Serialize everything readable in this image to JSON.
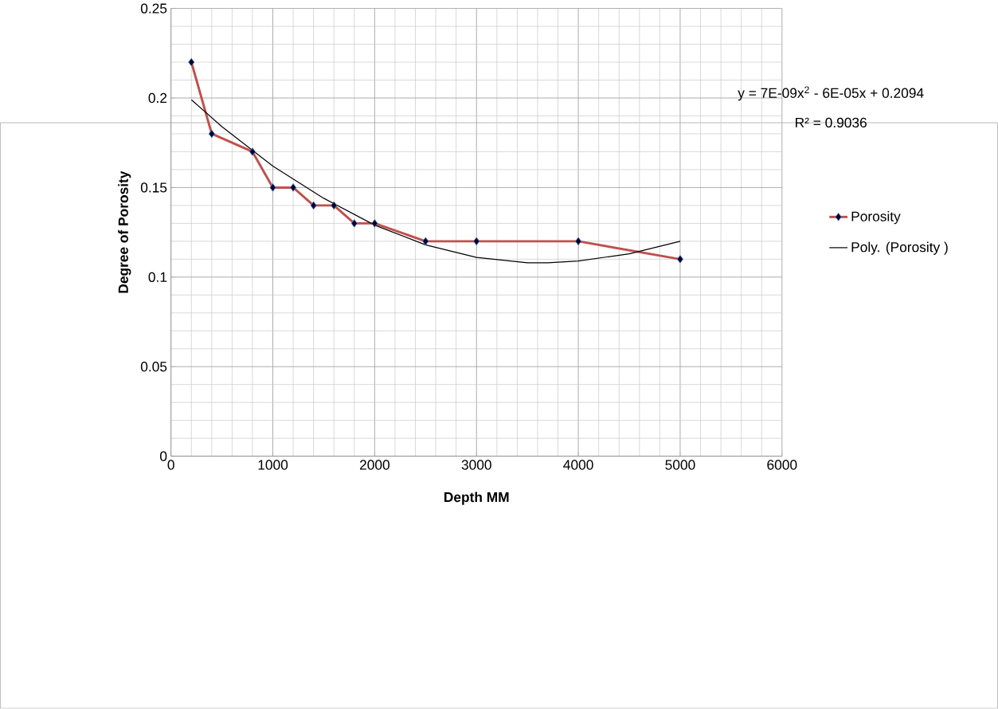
{
  "chart_data": {
    "type": "line",
    "xlabel": "Depth MM",
    "ylabel": "Degree of Porosity",
    "xlim": [
      0,
      6000
    ],
    "ylim": [
      0,
      0.25
    ],
    "xticks": [
      0,
      1000,
      2000,
      3000,
      4000,
      5000,
      6000
    ],
    "yticks": [
      0,
      0.05,
      0.1,
      0.15,
      0.2,
      0.25
    ],
    "grid": true,
    "legend": "right",
    "series": [
      {
        "name": "Porosity",
        "color": "#c0504d",
        "marker": "diamond",
        "x": [
          200,
          400,
          800,
          1000,
          1200,
          1400,
          1600,
          1800,
          2000,
          2500,
          3000,
          4000,
          5000
        ],
        "values": [
          0.22,
          0.18,
          0.17,
          0.15,
          0.15,
          0.14,
          0.14,
          0.13,
          0.13,
          0.12,
          0.12,
          0.12,
          0.11
        ]
      },
      {
        "name": "Poly. (Porosity )",
        "color": "#000000",
        "marker": "none",
        "x": [
          200,
          500,
          1000,
          1500,
          2000,
          2500,
          3000,
          3500,
          3700,
          4000,
          4500,
          5000
        ],
        "values": [
          0.199,
          0.184,
          0.162,
          0.144,
          0.129,
          0.118,
          0.111,
          0.108,
          0.108,
          0.109,
          0.113,
          0.12
        ]
      }
    ],
    "annotations": [
      "y = 7E-09x$^{2}$ - 6E-05x + 0.2094",
      "R² = 0.9036"
    ]
  }
}
